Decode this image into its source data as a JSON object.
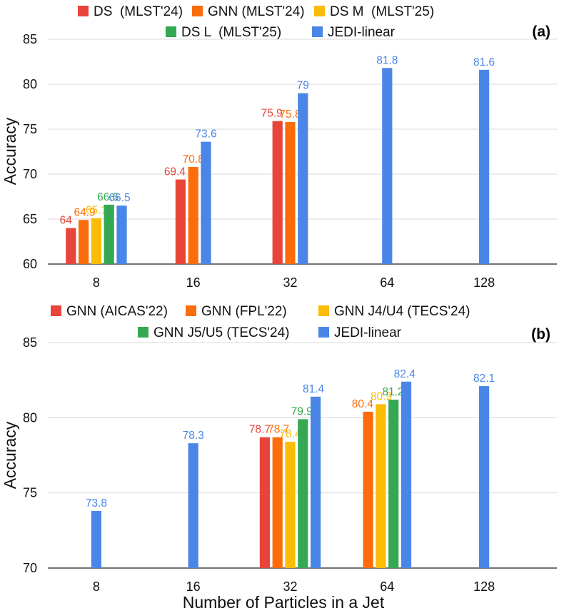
{
  "chart_data": [
    {
      "type": "bar",
      "panel_label": "(a)",
      "ylabel": "Accuracy",
      "xlabel": "",
      "ylim": [
        60,
        85
      ],
      "yticks": [
        "60",
        "65",
        "70",
        "75",
        "80",
        "85"
      ],
      "grid": true,
      "legend_position": "top",
      "categories": [
        "8",
        "16",
        "32",
        "64",
        "128"
      ],
      "series": [
        {
          "name": "DS  (MLST'24)",
          "color": "#e8443a",
          "values": [
            64,
            69.4,
            75.9,
            null,
            null
          ],
          "labels": [
            "64",
            "69.4",
            "75.9",
            "",
            ""
          ]
        },
        {
          "name": "GNN (MLST'24)",
          "color": "#fb6d0a",
          "values": [
            64.9,
            70.8,
            75.8,
            null,
            null
          ],
          "labels": [
            "64.9",
            "70.8",
            "75.8",
            "",
            ""
          ]
        },
        {
          "name": "DS M  (MLST'25)",
          "color": "#fbbc05",
          "values": [
            65.1,
            null,
            null,
            null,
            null
          ],
          "labels": [
            "65.1",
            "",
            "",
            "",
            ""
          ]
        },
        {
          "name": "DS L  (MLST'25)",
          "color": "#35a853",
          "values": [
            66.6,
            null,
            null,
            null,
            null
          ],
          "labels": [
            "66.6",
            "",
            "",
            "",
            ""
          ]
        },
        {
          "name": "JEDI-linear",
          "color": "#4a86e8",
          "values": [
            66.5,
            73.6,
            79,
            81.8,
            81.6
          ],
          "labels": [
            "66.5",
            "73.6",
            "79",
            "81.8",
            "81.6"
          ]
        }
      ]
    },
    {
      "type": "bar",
      "panel_label": "(b)",
      "ylabel": "Accuracy",
      "xlabel": "Number of Particles in a Jet",
      "ylim": [
        70,
        85
      ],
      "yticks": [
        "70",
        "75",
        "80",
        "85"
      ],
      "grid": true,
      "legend_position": "top",
      "categories": [
        "8",
        "16",
        "32",
        "64",
        "128"
      ],
      "series": [
        {
          "name": "GNN (AICAS'22)",
          "color": "#e8443a",
          "values": [
            null,
            null,
            78.7,
            null,
            null
          ],
          "labels": [
            "",
            "",
            "78.7",
            "",
            ""
          ]
        },
        {
          "name": "GNN (FPL'22)",
          "color": "#fb6d0a",
          "values": [
            null,
            null,
            78.7,
            80.4,
            null
          ],
          "labels": [
            "",
            "",
            "78.7",
            "80.4",
            ""
          ]
        },
        {
          "name": "GNN J4/U4 (TECS'24)",
          "color": "#fbbc05",
          "values": [
            null,
            null,
            78.4,
            80.9,
            null
          ],
          "labels": [
            "",
            "",
            "78.4",
            "80.9",
            ""
          ]
        },
        {
          "name": "GNN J5/U5 (TECS'24)",
          "color": "#35a853",
          "values": [
            null,
            null,
            79.9,
            81.2,
            null
          ],
          "labels": [
            "",
            "",
            "79.9",
            "81.2",
            ""
          ]
        },
        {
          "name": "JEDI-linear",
          "color": "#4a86e8",
          "values": [
            73.8,
            78.3,
            81.4,
            82.4,
            82.1
          ],
          "labels": [
            "73.8",
            "78.3",
            "81.4",
            "82.4",
            "82.1"
          ]
        }
      ]
    }
  ]
}
